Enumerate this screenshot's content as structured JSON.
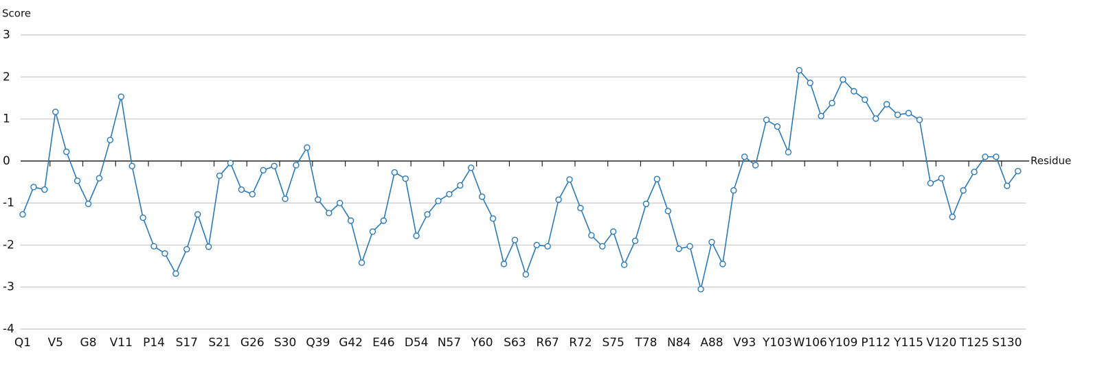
{
  "chart_data": {
    "type": "line",
    "y_label": "Score",
    "x_label": "Residue",
    "categories": [
      "Q1",
      null,
      null,
      "V5",
      null,
      null,
      "G8",
      null,
      null,
      "V11",
      null,
      null,
      "P14",
      null,
      null,
      "S17",
      null,
      null,
      "S21",
      null,
      null,
      "G26",
      null,
      null,
      "S30",
      null,
      null,
      "Q39",
      null,
      null,
      "G42",
      null,
      null,
      "E46",
      null,
      null,
      "D54",
      null,
      null,
      "N57",
      null,
      null,
      "Y60",
      null,
      null,
      "S63",
      null,
      null,
      "R67",
      null,
      null,
      "R72",
      null,
      null,
      "S75",
      null,
      null,
      "T78",
      null,
      null,
      "N84",
      null,
      null,
      "A88",
      null,
      null,
      "V93",
      null,
      null,
      "Y103",
      null,
      null,
      "W106",
      null,
      null,
      "Y109",
      null,
      null,
      "P112",
      null,
      null,
      "Y115",
      null,
      null,
      "V120",
      null,
      null,
      "T125",
      null,
      null,
      "S130",
      null
    ],
    "series": [
      {
        "name": "Score",
        "color": "#2a78b8",
        "values": [
          -1.27,
          -0.62,
          -0.68,
          1.17,
          0.22,
          -0.47,
          -1.02,
          -0.41,
          0.5,
          1.53,
          -0.12,
          -1.35,
          -2.03,
          -2.2,
          -2.68,
          -2.1,
          -1.27,
          -2.04,
          -0.35,
          -0.05,
          -0.68,
          -0.79,
          -0.22,
          -0.12,
          -0.9,
          -0.1,
          0.32,
          -0.92,
          -1.24,
          -1.0,
          -1.42,
          -2.42,
          -1.68,
          -1.42,
          -0.27,
          -0.42,
          -1.78,
          -1.27,
          -0.95,
          -0.79,
          -0.58,
          -0.16,
          -0.85,
          -1.37,
          -2.45,
          -1.88,
          -2.7,
          -2.0,
          -2.03,
          -0.92,
          -0.44,
          -1.12,
          -1.77,
          -2.03,
          -1.68,
          -2.47,
          -1.9,
          -1.02,
          -0.43,
          -1.19,
          -2.09,
          -2.03,
          -3.05,
          -1.93,
          -2.45,
          -0.7,
          0.1,
          -0.1,
          0.98,
          0.82,
          0.21,
          2.16,
          1.86,
          1.07,
          1.38,
          1.94,
          1.66,
          1.46,
          1.01,
          1.35,
          1.1,
          1.14,
          0.98,
          -0.53,
          -0.41,
          -1.33,
          -0.7,
          -0.26,
          0.1,
          0.1,
          -0.59,
          -0.24
        ]
      }
    ],
    "ylim": [
      -4,
      3
    ],
    "yticks": [
      -4,
      -3,
      -2,
      -1,
      0,
      1,
      2,
      3
    ],
    "grid": true
  }
}
